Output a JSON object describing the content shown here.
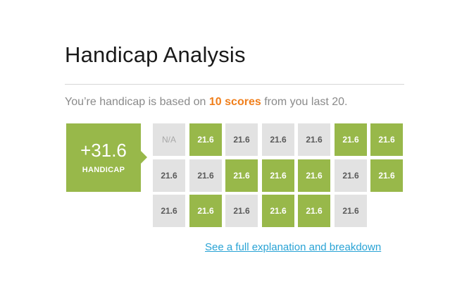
{
  "title": "Handicap Analysis",
  "subtitle": {
    "prefix": "You’re handicap is based on ",
    "highlight": "10 scores",
    "suffix": " from you last 20."
  },
  "handicap": {
    "value": "+31.6",
    "label": "HANDICAP"
  },
  "scores": [
    {
      "text": "N/A",
      "counted": false,
      "na": true
    },
    {
      "text": "21.6",
      "counted": true
    },
    {
      "text": "21.6",
      "counted": false
    },
    {
      "text": "21.6",
      "counted": false
    },
    {
      "text": "21.6",
      "counted": false
    },
    {
      "text": "21.6",
      "counted": true
    },
    {
      "text": "21.6",
      "counted": true
    },
    {
      "text": "21.6",
      "counted": false
    },
    {
      "text": "21.6",
      "counted": false
    },
    {
      "text": "21.6",
      "counted": true
    },
    {
      "text": "21.6",
      "counted": true
    },
    {
      "text": "21.6",
      "counted": true
    },
    {
      "text": "21.6",
      "counted": false
    },
    {
      "text": "21.6",
      "counted": true
    },
    {
      "text": "21.6",
      "counted": false
    },
    {
      "text": "21.6",
      "counted": true
    },
    {
      "text": "21.6",
      "counted": false
    },
    {
      "text": "21.6",
      "counted": true
    },
    {
      "text": "21.6",
      "counted": true
    },
    {
      "text": "21.6",
      "counted": false
    }
  ],
  "link": "See a full explanation and breakdown",
  "colors": {
    "counted": "#98b84a",
    "not_counted": "#e2e2e2",
    "highlight": "#f07f1c",
    "link": "#29a3d5"
  }
}
